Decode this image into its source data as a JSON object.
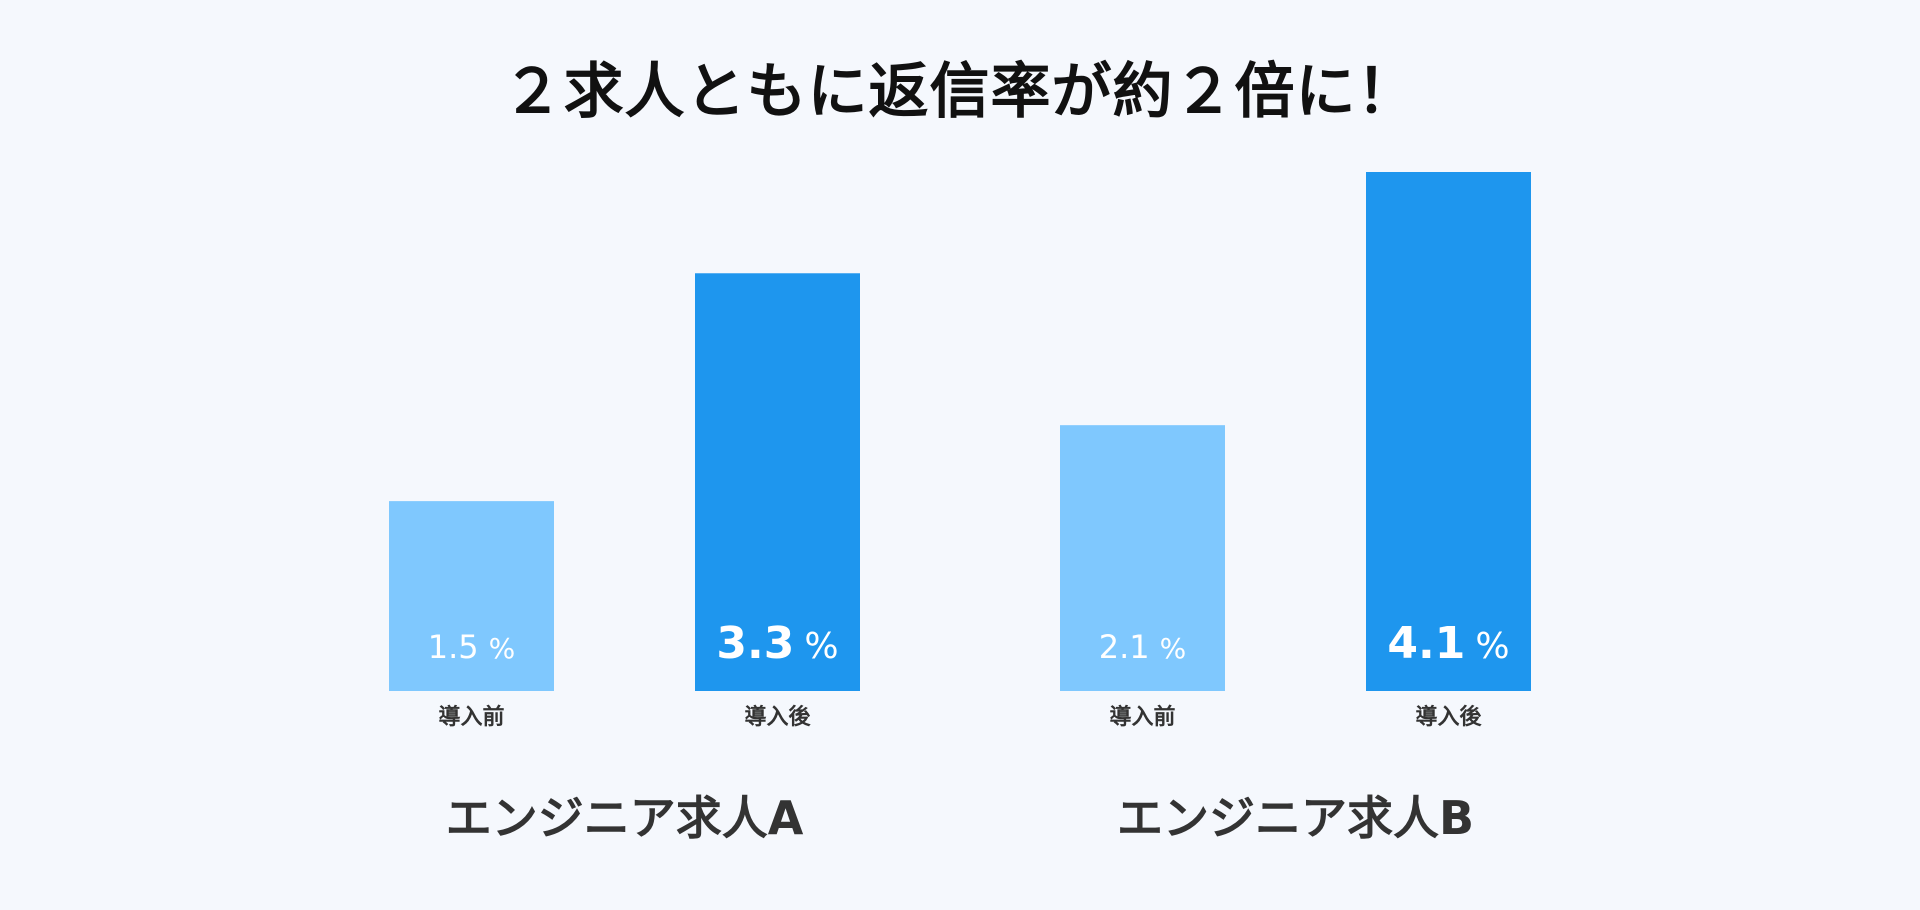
{
  "title": "２求人ともに返信率が約２倍に！",
  "colors": {
    "background": "#F5F8FD",
    "before": "#7FC8FE",
    "after": "#1E96EE",
    "value_text": "#FFFFFF",
    "label_text": "#333333",
    "title_text": "#111111"
  },
  "chart_data": {
    "type": "bar",
    "title": "２求人ともに返信率が約２倍に！",
    "xlabel": "",
    "ylabel": "",
    "ylim": [
      0,
      4.1
    ],
    "unit": "%",
    "grid": false,
    "axes_visible": false,
    "groups": [
      {
        "name": "エンジニア求人A",
        "bars": [
          {
            "label": "導入前",
            "value": 1.5,
            "display": "1.5",
            "color": "#7FC8FE"
          },
          {
            "label": "導入後",
            "value": 3.3,
            "display": "3.3",
            "color": "#1E96EE"
          }
        ]
      },
      {
        "name": "エンジニア求人B",
        "bars": [
          {
            "label": "導入前",
            "value": 2.1,
            "display": "2.1",
            "color": "#7FC8FE"
          },
          {
            "label": "導入後",
            "value": 4.1,
            "display": "4.1",
            "color": "#1E96EE"
          }
        ]
      }
    ]
  }
}
